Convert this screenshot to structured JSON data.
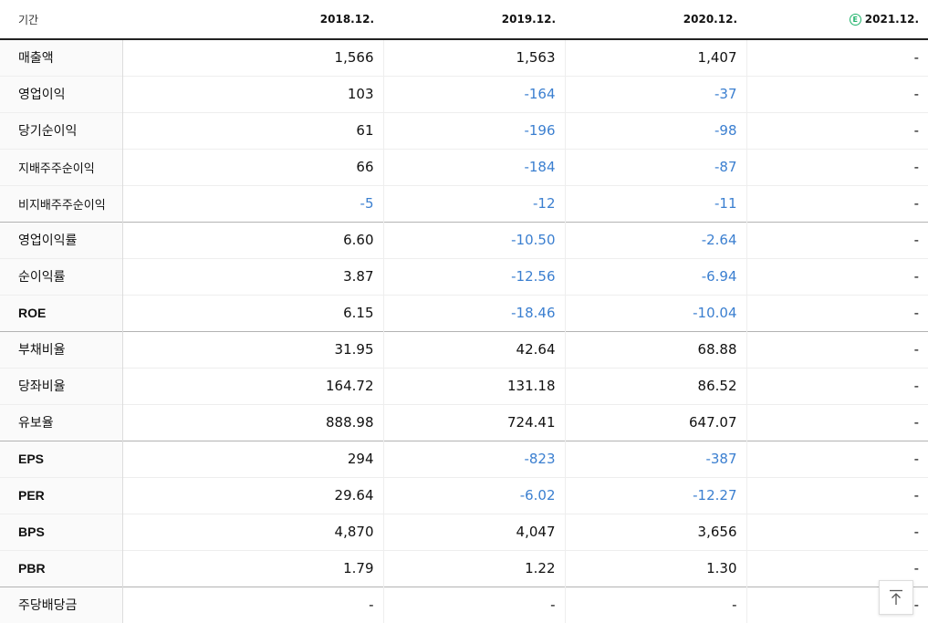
{
  "header": {
    "period_label": "기간",
    "columns": [
      "2018.12.",
      "2019.12.",
      "2020.12.",
      "2021.12."
    ],
    "estimate_badge": "E"
  },
  "rows": [
    {
      "label": "매출액",
      "values": [
        "1,566",
        "1,563",
        "1,407",
        "-"
      ],
      "group_start": false
    },
    {
      "label": "영업이익",
      "values": [
        "103",
        "-164",
        "-37",
        "-"
      ],
      "group_start": false
    },
    {
      "label": "당기순이익",
      "values": [
        "61",
        "-196",
        "-98",
        "-"
      ],
      "group_start": false
    },
    {
      "label": "지배주주순이익",
      "values": [
        "66",
        "-184",
        "-87",
        "-"
      ],
      "group_start": false
    },
    {
      "label": "비지배주주순이익",
      "values": [
        "-5",
        "-12",
        "-11",
        "-"
      ],
      "group_start": false
    },
    {
      "label": "영업이익률",
      "values": [
        "6.60",
        "-10.50",
        "-2.64",
        "-"
      ],
      "group_start": true
    },
    {
      "label": "순이익률",
      "values": [
        "3.87",
        "-12.56",
        "-6.94",
        "-"
      ],
      "group_start": false
    },
    {
      "label": "ROE",
      "values": [
        "6.15",
        "-18.46",
        "-10.04",
        "-"
      ],
      "group_start": false
    },
    {
      "label": "부채비율",
      "values": [
        "31.95",
        "42.64",
        "68.88",
        "-"
      ],
      "group_start": true
    },
    {
      "label": "당좌비율",
      "values": [
        "164.72",
        "131.18",
        "86.52",
        "-"
      ],
      "group_start": false
    },
    {
      "label": "유보율",
      "values": [
        "888.98",
        "724.41",
        "647.07",
        "-"
      ],
      "group_start": false
    },
    {
      "label": "EPS",
      "values": [
        "294",
        "-823",
        "-387",
        "-"
      ],
      "group_start": true
    },
    {
      "label": "PER",
      "values": [
        "29.64",
        "-6.02",
        "-12.27",
        "-"
      ],
      "group_start": false
    },
    {
      "label": "BPS",
      "values": [
        "4,870",
        "4,047",
        "3,656",
        "-"
      ],
      "group_start": false
    },
    {
      "label": "PBR",
      "values": [
        "1.79",
        "1.22",
        "1.30",
        "-"
      ],
      "group_start": false
    },
    {
      "label": "주당배당금",
      "values": [
        "-",
        "-",
        "-",
        "-"
      ],
      "group_start": true
    }
  ],
  "colors": {
    "negative": "#3b7fd0",
    "estimate": "#20b36b"
  },
  "icons": {
    "scroll_top": "arrow-up-to-line-icon"
  }
}
